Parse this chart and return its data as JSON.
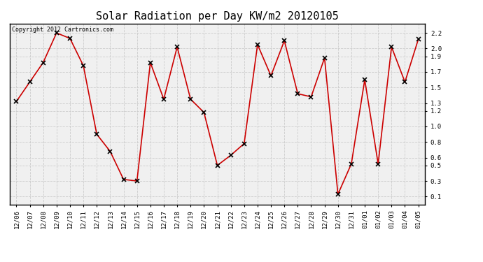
{
  "title": "Solar Radiation per Day KW/m2 20120105",
  "copyright": "Copyright 2012 Cartronics.com",
  "labels": [
    "12/06",
    "12/07",
    "12/08",
    "12/09",
    "12/10",
    "12/11",
    "12/12",
    "12/13",
    "12/14",
    "12/15",
    "12/16",
    "12/17",
    "12/18",
    "12/19",
    "12/20",
    "12/21",
    "12/22",
    "12/23",
    "12/24",
    "12/25",
    "12/26",
    "12/27",
    "12/28",
    "12/29",
    "12/30",
    "12/31",
    "01/01",
    "01/02",
    "01/03",
    "01/04",
    "01/05"
  ],
  "values": [
    1.32,
    1.57,
    1.82,
    2.2,
    2.13,
    1.78,
    0.9,
    0.68,
    0.32,
    0.3,
    1.82,
    1.35,
    2.02,
    1.35,
    1.18,
    0.5,
    0.63,
    0.78,
    2.05,
    1.65,
    2.1,
    1.42,
    1.38,
    1.88,
    0.13,
    0.52,
    1.6,
    0.52,
    2.02,
    1.57,
    2.12
  ],
  "line_color": "#cc0000",
  "marker_color": "#000000",
  "bg_color": "#ffffff",
  "plot_bg_color": "#f0f0f0",
  "grid_color": "#cccccc",
  "yticks": [
    0.1,
    0.3,
    0.5,
    0.6,
    0.8,
    1.0,
    1.2,
    1.3,
    1.5,
    1.7,
    1.9,
    2.0,
    2.2
  ],
  "ylim": [
    0.0,
    2.32
  ],
  "title_fontsize": 11,
  "tick_fontsize": 6.5,
  "copyright_fontsize": 6
}
